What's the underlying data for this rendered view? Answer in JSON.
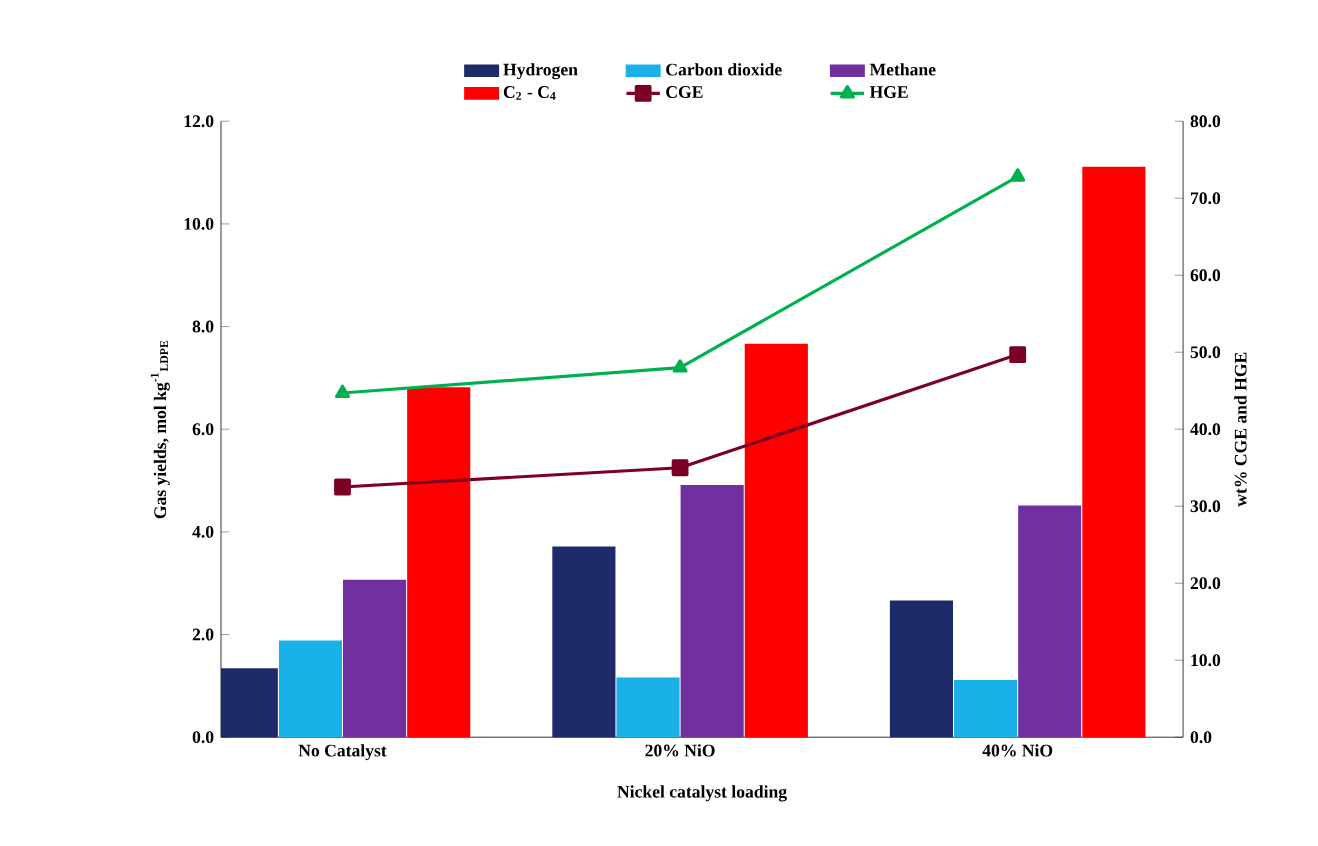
{
  "chart_data": {
    "type": "bar",
    "xlabel": "Nickel catalyst loading",
    "ylabel": "Gas yields, mol kg$^{-1}$$_{LDPE}$",
    "y2label": "wt% CGE and  HGE",
    "categories": [
      "No Catalyst",
      "20% NiO",
      "40% NiO"
    ],
    "series": [
      {
        "name": "Hydrogen",
        "color": "#1f2a6b",
        "values": [
          1.33,
          3.7,
          2.65
        ]
      },
      {
        "name": "Carbon dioxide",
        "color": "#1ab0e8",
        "values": [
          1.87,
          1.15,
          1.1
        ]
      },
      {
        "name": "Methane",
        "color": "#7030a0",
        "values": [
          3.05,
          4.9,
          4.5
        ]
      },
      {
        "name": "C$_{2}$ - C$_{4}$",
        "color": "#ff0000",
        "values": [
          6.8,
          7.65,
          11.1
        ]
      },
      {
        "name": "CGE",
        "color": "#7b0023",
        "type": "line",
        "axis": "y2",
        "marker": "square",
        "values": [
          32.5,
          35.0,
          49.7
        ]
      },
      {
        "name": "HGE",
        "color": "#00b050",
        "type": "line",
        "axis": "y2",
        "marker": "triangle",
        "values": [
          44.7,
          48.0,
          72.8
        ]
      }
    ],
    "ylim": [
      0,
      12
    ],
    "yticks": [
      {
        "value": 0,
        "label": "0.0"
      },
      {
        "value": 2,
        "label": "2.0"
      },
      {
        "value": 4,
        "label": "4.0"
      },
      {
        "value": 6,
        "label": "6.0"
      },
      {
        "value": 8,
        "label": "8.0"
      },
      {
        "value": 10,
        "label": "10.0"
      },
      {
        "value": 12,
        "label": "12.0"
      }
    ],
    "y2lim": [
      0,
      80
    ],
    "y2ticks": [
      {
        "value": 0,
        "label": "0.0"
      },
      {
        "value": 10,
        "label": "10.0"
      },
      {
        "value": 20,
        "label": "20.0"
      },
      {
        "value": 30,
        "label": "30.0"
      },
      {
        "value": 40,
        "label": "40.0"
      },
      {
        "value": 50,
        "label": "50.0"
      },
      {
        "value": 60,
        "label": "60.0"
      },
      {
        "value": 70,
        "label": "70.0"
      },
      {
        "value": 80,
        "label": "80.0"
      }
    ],
    "legend": "top",
    "grid": false
  }
}
